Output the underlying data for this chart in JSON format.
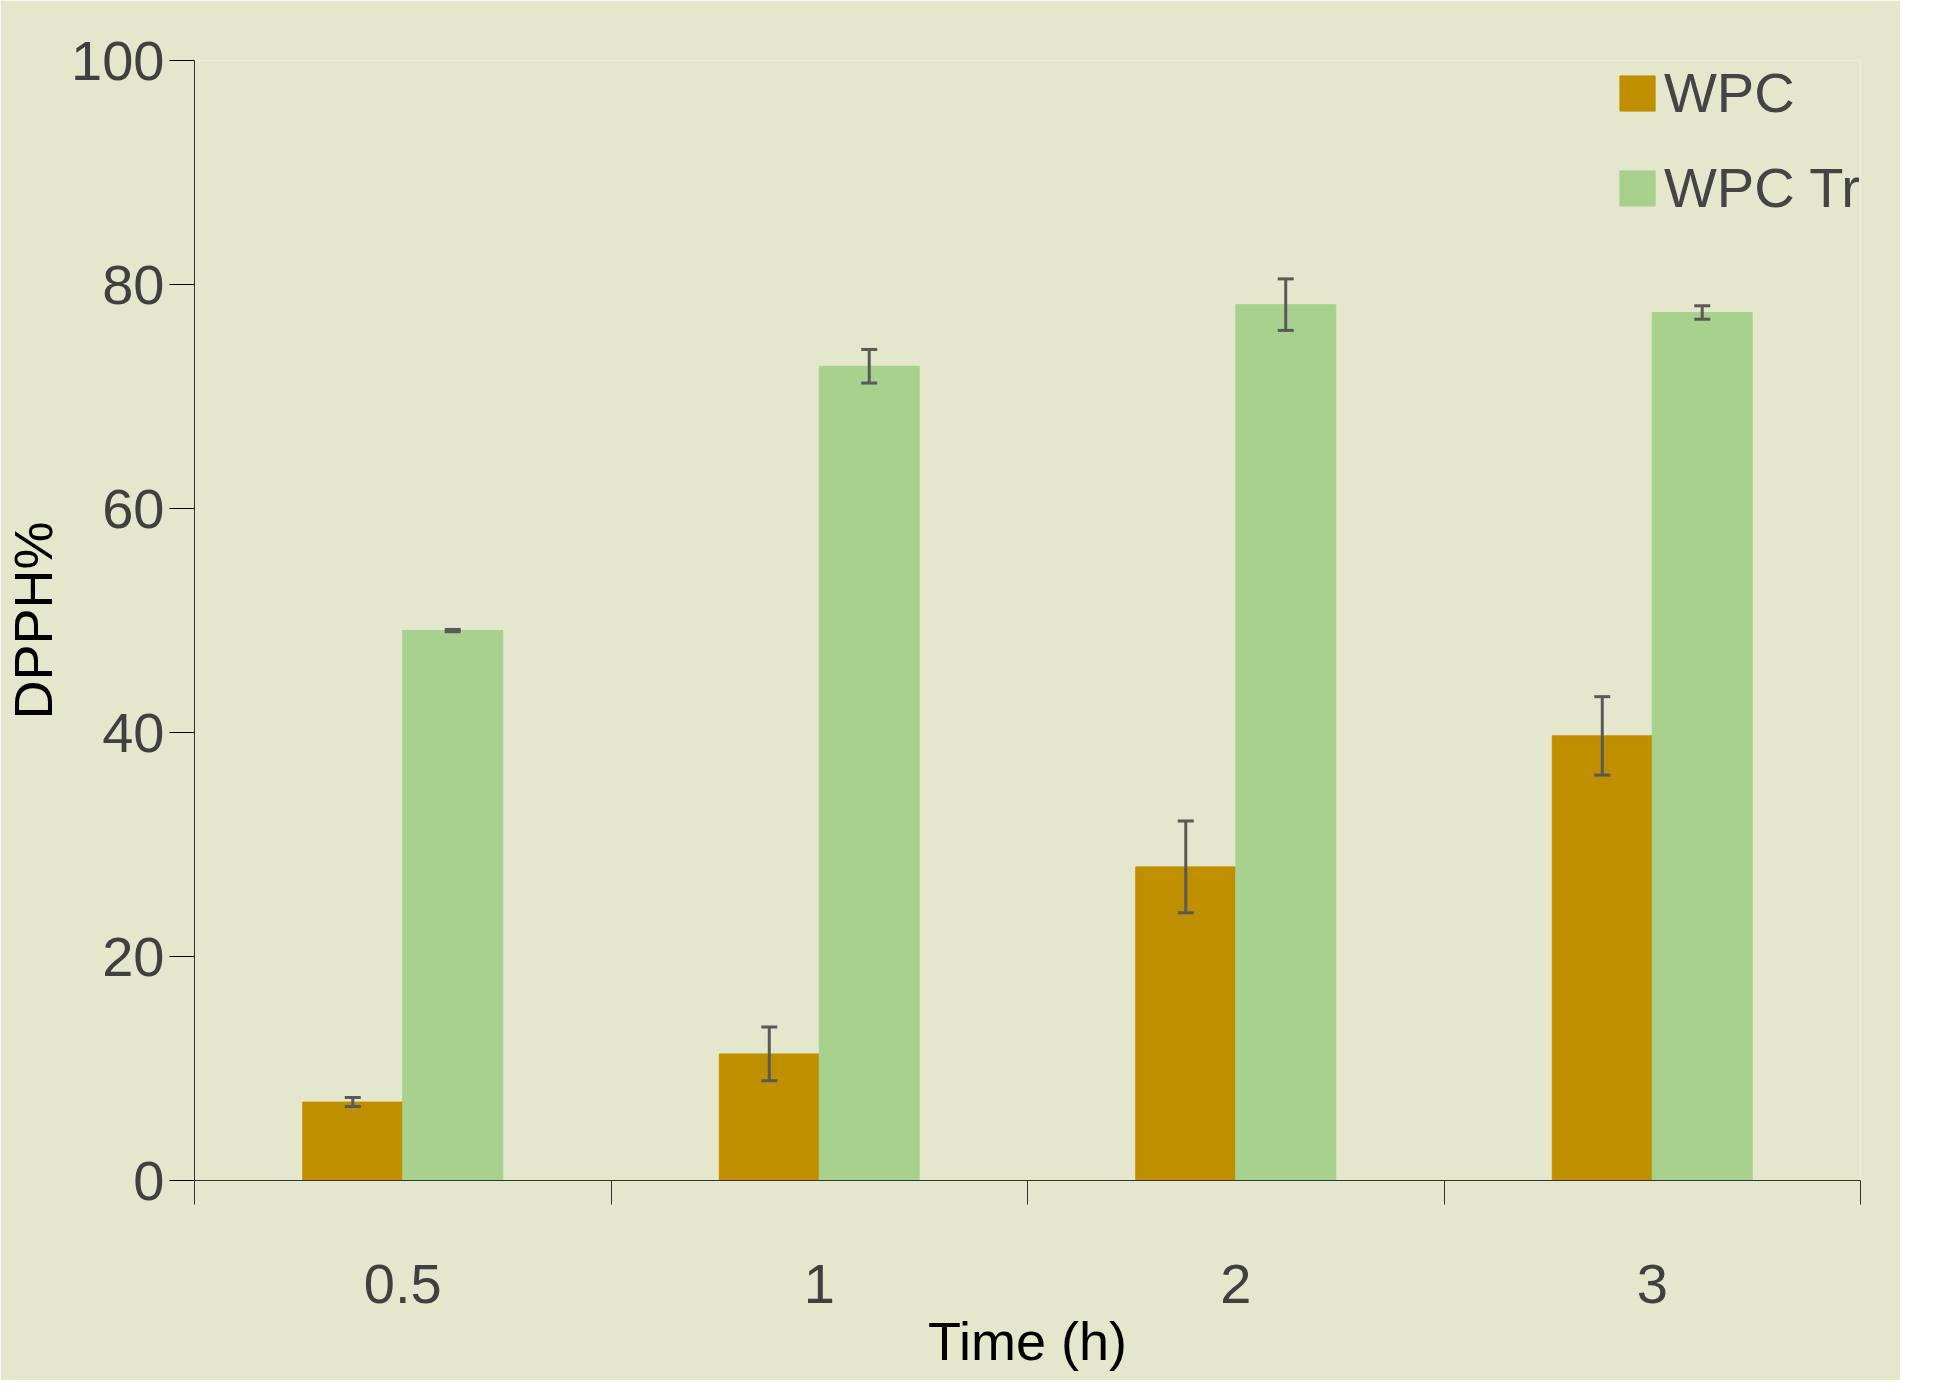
{
  "chart_data": {
    "type": "bar",
    "xlabel": "Time (h)",
    "ylabel": "DPPH%",
    "categories": [
      "0.5",
      "1",
      "2",
      "3"
    ],
    "series": [
      {
        "name": "WPC",
        "color": "#bf8f00",
        "values": [
          7.0,
          11.3,
          28.0,
          39.7
        ],
        "errors": [
          0.4,
          2.4,
          4.1,
          3.5
        ]
      },
      {
        "name": "WPC Tr",
        "color": "#a9d18e",
        "values": [
          49.1,
          72.7,
          78.2,
          77.5
        ],
        "errors": [
          0.1,
          1.5,
          2.3,
          0.6
        ]
      }
    ],
    "ylim": [
      0,
      100
    ],
    "yticks": [
      0,
      20,
      40,
      60,
      80,
      100
    ],
    "grid": false,
    "legend": "top right"
  }
}
